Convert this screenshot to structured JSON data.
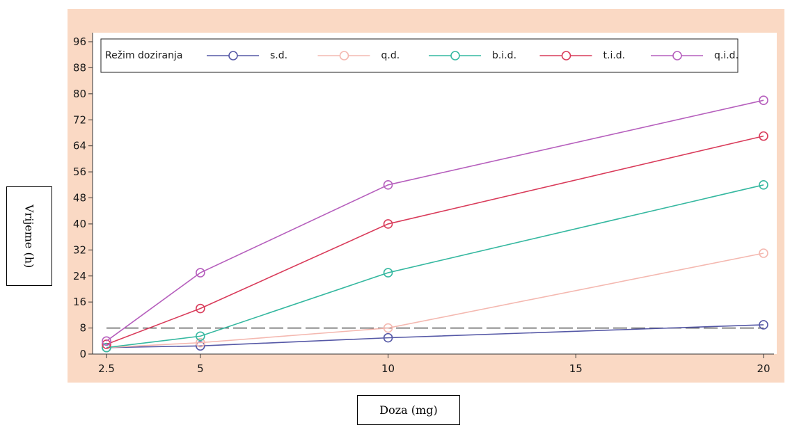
{
  "chart_data": {
    "type": "line",
    "title": "",
    "xlabel": "Doza (mg)",
    "ylabel": "Vrijeme (h)",
    "x": [
      2.5,
      5,
      10,
      20
    ],
    "xlim": [
      2.5,
      20
    ],
    "ylim": [
      0,
      96
    ],
    "xticks": [
      "2.5",
      "5",
      "10",
      "15",
      "20"
    ],
    "xtick_values": [
      2.5,
      5,
      10,
      15,
      20
    ],
    "yticks": [
      0,
      8,
      16,
      24,
      32,
      40,
      48,
      56,
      64,
      72,
      80,
      88,
      96
    ],
    "reference_line": {
      "y": 8,
      "style": "dashed"
    },
    "legend": {
      "title": "Režim doziranja",
      "position": "top"
    },
    "series": [
      {
        "name": "s.d.",
        "color": "#5558a6",
        "values": [
          2,
          2.5,
          5,
          9
        ]
      },
      {
        "name": "q.d.",
        "color": "#f4b8b0",
        "values": [
          2,
          3.5,
          8,
          31
        ]
      },
      {
        "name": "b.i.d.",
        "color": "#35b8a0",
        "values": [
          2,
          5.5,
          25,
          52
        ]
      },
      {
        "name": "t.i.d.",
        "color": "#d93b5a",
        "values": [
          3,
          14,
          40,
          67
        ]
      },
      {
        "name": "q.i.d.",
        "color": "#b65fbd",
        "values": [
          4,
          25,
          52,
          78
        ]
      }
    ],
    "grid": false
  }
}
